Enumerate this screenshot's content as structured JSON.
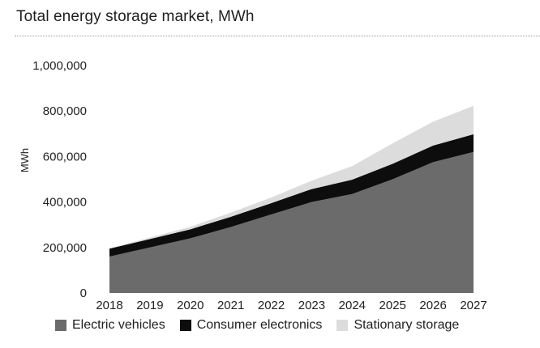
{
  "header": {
    "title": "Total energy storage market, MWh"
  },
  "chart_data": {
    "type": "area",
    "stacked": true,
    "title": "Total energy storage market, MWh",
    "xlabel": "",
    "ylabel": "MWh",
    "x": [
      "2018",
      "2019",
      "2020",
      "2021",
      "2022",
      "2023",
      "2024",
      "2025",
      "2026",
      "2027"
    ],
    "ylim": [
      0,
      1000000
    ],
    "yticks": [
      0,
      200000,
      400000,
      600000,
      800000,
      1000000
    ],
    "ytick_labels": [
      "0",
      "200,000",
      "400,000",
      "600,000",
      "800,000",
      "1,000,000"
    ],
    "grid": false,
    "legend_position": "bottom",
    "series": [
      {
        "name": "Electric vehicles",
        "color": "#6b6b6b",
        "values": [
          160000,
          200000,
          240000,
          290000,
          345000,
          400000,
          435000,
          500000,
          575000,
          620000
        ]
      },
      {
        "name": "Consumer electronics",
        "color": "#0d0d0d",
        "values": [
          35000,
          37000,
          40000,
          45000,
          50000,
          57000,
          63000,
          68000,
          73000,
          78000
        ]
      },
      {
        "name": "Stationary storage",
        "color": "#dcdcdc",
        "values": [
          2000,
          7000,
          11000,
          18000,
          25000,
          37000,
          60000,
          90000,
          105000,
          125000
        ]
      }
    ]
  }
}
